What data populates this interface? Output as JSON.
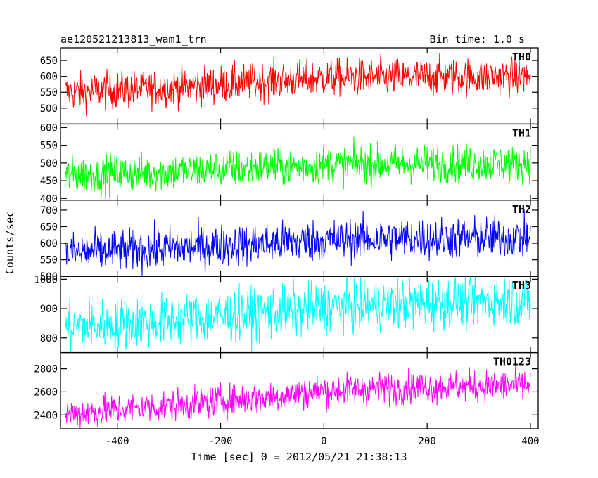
{
  "chart_data": {
    "type": "line",
    "title": "ae120521213813_wam1_trn",
    "subtitle": "Bin time: 1.0 s",
    "xlabel": "Time [sec] 0 = 2012/05/21 21:38:13",
    "ylabel": "Counts/sec",
    "xlim": [
      -510,
      415
    ],
    "x_ticks": [
      -400,
      -200,
      0,
      200,
      400
    ],
    "x_range_data": [
      -500,
      400
    ],
    "grid": false,
    "panels": [
      {
        "name": "TH0",
        "color": "#ff0000",
        "ylim": [
          450,
          690
        ],
        "y_ticks": [
          500,
          550,
          600,
          650
        ],
        "trend": [
          [
            -500,
            550
          ],
          [
            -300,
            565
          ],
          [
            -100,
            585
          ],
          [
            0,
            595
          ],
          [
            200,
            598
          ],
          [
            400,
            600
          ]
        ],
        "noise": 30
      },
      {
        "name": "TH1",
        "color": "#00ff00",
        "ylim": [
          395,
          610
        ],
        "y_ticks": [
          400,
          450,
          500,
          550,
          600
        ],
        "trend": [
          [
            -500,
            465
          ],
          [
            -300,
            475
          ],
          [
            -100,
            488
          ],
          [
            0,
            495
          ],
          [
            200,
            498
          ],
          [
            400,
            500
          ]
        ],
        "noise": 27
      },
      {
        "name": "TH2",
        "color": "#0000ff",
        "ylim": [
          500,
          730
        ],
        "y_ticks": [
          500,
          550,
          600,
          650,
          700
        ],
        "trend": [
          [
            -500,
            570
          ],
          [
            -300,
            585
          ],
          [
            -100,
            600
          ],
          [
            0,
            610
          ],
          [
            200,
            615
          ],
          [
            400,
            618
          ]
        ],
        "noise": 32
      },
      {
        "name": "TH3",
        "color": "#00ffff",
        "ylim": [
          750,
          1010
        ],
        "y_ticks": [
          800,
          900,
          1000
        ],
        "trend": [
          [
            -500,
            835
          ],
          [
            -300,
            860
          ],
          [
            -100,
            885
          ],
          [
            0,
            905
          ],
          [
            200,
            920
          ],
          [
            400,
            930
          ]
        ],
        "noise": 45
      },
      {
        "name": "TH0123",
        "color": "#ff00ff",
        "ylim": [
          2280,
          2940
        ],
        "y_ticks": [
          2400,
          2600,
          2800
        ],
        "trend": [
          [
            -500,
            2410
          ],
          [
            -300,
            2480
          ],
          [
            -100,
            2560
          ],
          [
            0,
            2610
          ],
          [
            200,
            2645
          ],
          [
            400,
            2655
          ]
        ],
        "noise": 70
      }
    ]
  }
}
